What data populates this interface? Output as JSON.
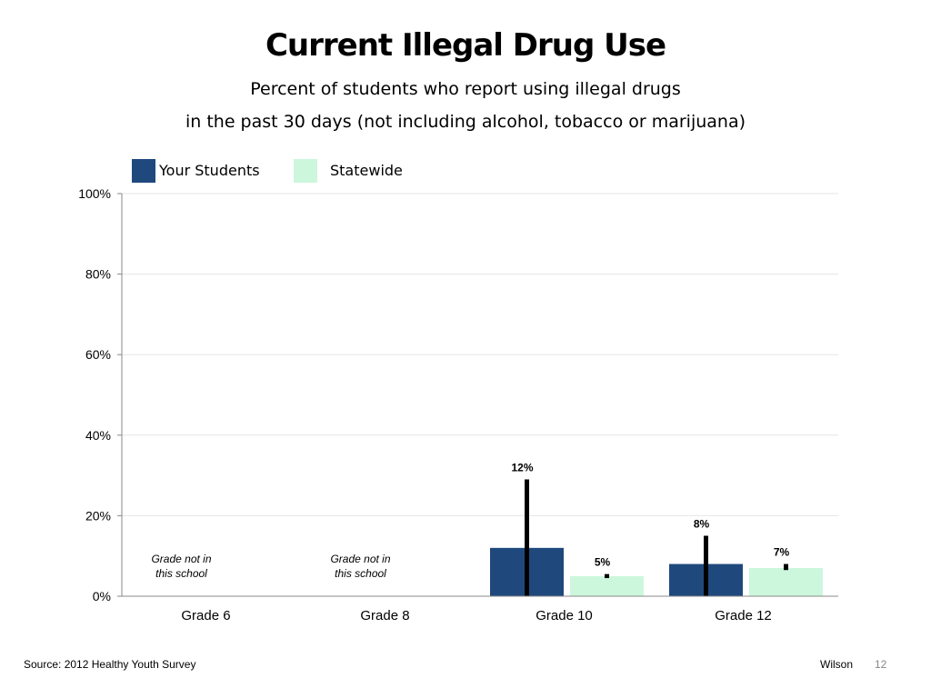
{
  "title": "Current Illegal Drug Use",
  "subtitle_line1": "Percent of students who report using illegal drugs",
  "subtitle_line2": "in the past 30 days (not including alcohol, tobacco or marijuana)",
  "legend": {
    "items": [
      {
        "label": "Your Students",
        "color": "#1f497d"
      },
      {
        "label": "Statewide",
        "color": "#ccf7dd"
      }
    ]
  },
  "chart_data": {
    "type": "bar",
    "categories": [
      "Grade 6",
      "Grade 8",
      "Grade 10",
      "Grade 12"
    ],
    "series": [
      {
        "name": "Your Students",
        "color": "#1f497d",
        "values": [
          null,
          null,
          12,
          8
        ],
        "error_upper": [
          null,
          null,
          29,
          15
        ],
        "error_lower": [
          null,
          null,
          0,
          0
        ]
      },
      {
        "name": "Statewide",
        "color": "#ccf7dd",
        "values": [
          null,
          null,
          5,
          7
        ],
        "error_upper": [
          null,
          null,
          5.5,
          8
        ],
        "error_lower": [
          null,
          null,
          4.5,
          6.5
        ]
      }
    ],
    "data_labels": [
      [
        null,
        null,
        "12%",
        "8%"
      ],
      [
        null,
        null,
        "5%",
        "7%"
      ]
    ],
    "category_notes": [
      "Grade not in\nthis school",
      "Grade not in\nthis school",
      "",
      ""
    ],
    "yticks": [
      "0%",
      "20%",
      "40%",
      "60%",
      "80%",
      "100%"
    ],
    "ylim": [
      0,
      100
    ],
    "grid": true,
    "legend_position": "top-left"
  },
  "footer": {
    "source": "Source: 2012 Healthy Youth Survey",
    "author": "Wilson",
    "page": "12"
  }
}
